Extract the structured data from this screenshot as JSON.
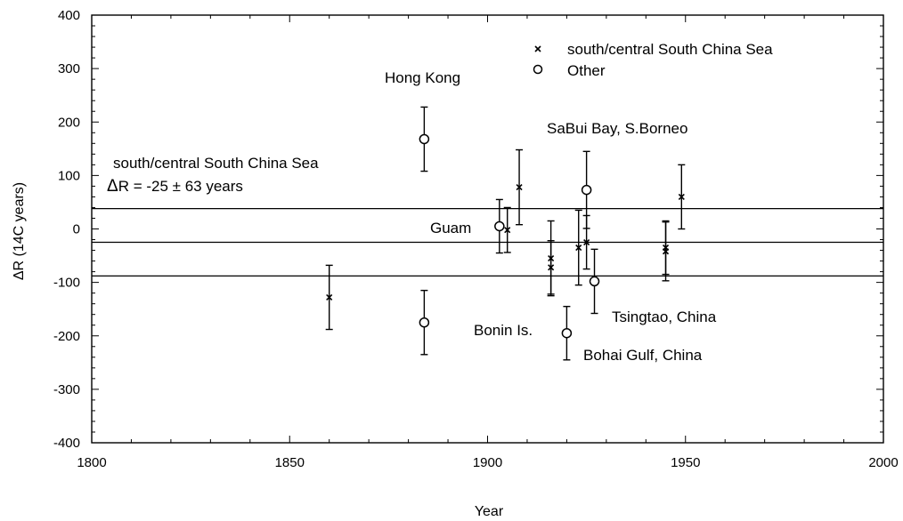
{
  "chart_data": {
    "type": "scatter",
    "xlabel": "Year",
    "ylabel": "ΔR (14C years)",
    "xlim": [
      1800,
      2000
    ],
    "ylim": [
      -400,
      400
    ],
    "xticks": [
      1800,
      1850,
      1900,
      1950,
      2000
    ],
    "yticks": [
      -400,
      -300,
      -200,
      -100,
      0,
      100,
      200,
      300,
      400
    ],
    "grid": false,
    "legend_position": "top-right",
    "legend": [
      {
        "marker": "x",
        "label": "south/central South China Sea"
      },
      {
        "marker": "circle",
        "label": "Other"
      }
    ],
    "mean_lines": [
      -25,
      38,
      -88
    ],
    "series": [
      {
        "name": "south/central South China Sea",
        "marker": "x",
        "points": [
          {
            "x": 1860,
            "y": -128,
            "err": 60
          },
          {
            "x": 1905,
            "y": -2,
            "err": 42
          },
          {
            "x": 1908,
            "y": 78,
            "err": 70
          },
          {
            "x": 1916,
            "y": -55,
            "err": 70
          },
          {
            "x": 1916,
            "y": -72,
            "err": 50
          },
          {
            "x": 1923,
            "y": -35,
            "err": 70
          },
          {
            "x": 1925,
            "y": -25,
            "err": 50
          },
          {
            "x": 1945,
            "y": -35,
            "err": 50
          },
          {
            "x": 1945,
            "y": -42,
            "err": 55
          },
          {
            "x": 1949,
            "y": 60,
            "err": 60
          }
        ]
      },
      {
        "name": "Other",
        "marker": "circle",
        "points": [
          {
            "x": 1884,
            "y": 168,
            "err": 60,
            "label": "Hong Kong"
          },
          {
            "x": 1884,
            "y": -175,
            "err": 60,
            "label": "Bonin Is."
          },
          {
            "x": 1903,
            "y": 5,
            "err": 50,
            "label": "Guam"
          },
          {
            "x": 1920,
            "y": -195,
            "err": 50,
            "label": "Bohai Gulf, China"
          },
          {
            "x": 1925,
            "y": 73,
            "err": 72,
            "label": "SaBui Bay, S.Borneo"
          },
          {
            "x": 1927,
            "y": -98,
            "err": 60,
            "label": "Tsingtao, China"
          }
        ]
      }
    ],
    "annotations": {
      "region_title": "south/central South China Sea",
      "delta_symbol": "Δ",
      "region_value": "R = -25 ± 63 years",
      "hong_kong": "Hong Kong",
      "sabui": "SaBui Bay, S.Borneo",
      "guam": "Guam",
      "bonin": "Bonin Is.",
      "tsingtao": "Tsingtao, China",
      "bohai": "Bohai Gulf, China"
    }
  }
}
